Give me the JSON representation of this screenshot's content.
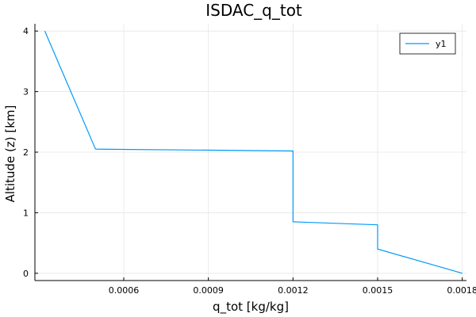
{
  "chart_data": {
    "type": "line",
    "title": "ISDAC_q_tot",
    "xlabel": "q_tot [kg/kg]",
    "ylabel": "Altitude (z) [km]",
    "xlim": [
      0.000285,
      0.001815
    ],
    "ylim": [
      -0.12,
      4.12
    ],
    "xticks": [
      0.0006,
      0.0009,
      0.0012,
      0.0015,
      0.0018
    ],
    "xtick_labels": [
      "0.0006",
      "0.0009",
      "0.0012",
      "0.0015",
      "0.0018"
    ],
    "yticks": [
      0,
      1,
      2,
      3,
      4
    ],
    "ytick_labels": [
      "0",
      "1",
      "2",
      "3",
      "4"
    ],
    "grid": true,
    "legend_position": "top-right",
    "series": [
      {
        "name": "y1",
        "color": "#009af9",
        "x": [
          0.00032,
          0.0005,
          0.0012,
          0.0012,
          0.0015,
          0.0015,
          0.0018
        ],
        "y": [
          4.0,
          2.05,
          2.02,
          0.85,
          0.8,
          0.4,
          0.0
        ]
      }
    ]
  }
}
